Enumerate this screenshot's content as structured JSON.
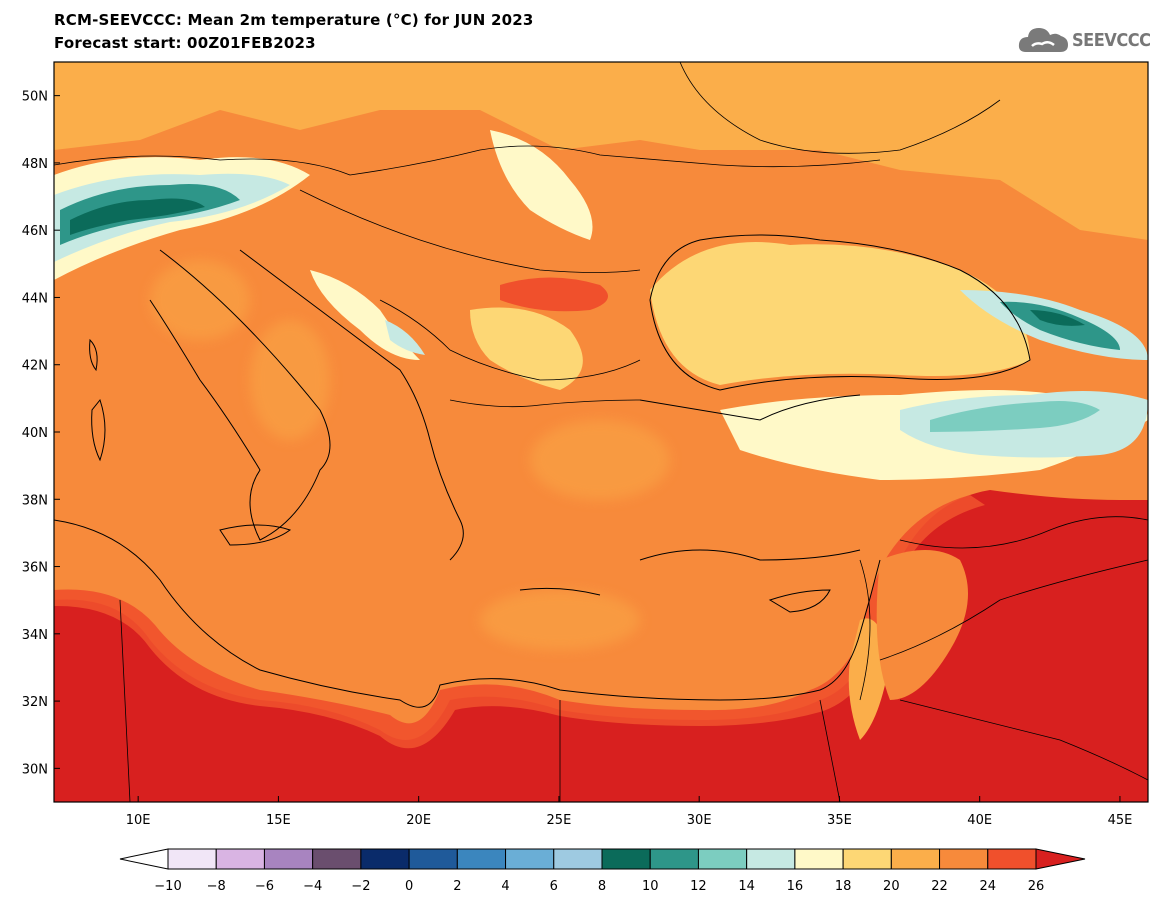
{
  "title_line1": "RCM-SEEVCCC: Mean 2m temperature (°C) for JUN 2023",
  "title_line2": "Forecast start: 00Z01FEB2023",
  "logo_text": "SEEVCCC",
  "map": {
    "lon_range": [
      7,
      46
    ],
    "lat_range": [
      29,
      51
    ],
    "lat_labels": [
      "50N",
      "48N",
      "46N",
      "44N",
      "42N",
      "40N",
      "38N",
      "36N",
      "34N",
      "32N",
      "30N"
    ],
    "lon_labels": [
      "10E",
      "15E",
      "20E",
      "25E",
      "30E",
      "35E",
      "40E",
      "45E"
    ]
  },
  "colorbar": {
    "labels": [
      "-10",
      "-8",
      "-6",
      "-4",
      "-2",
      "0",
      "2",
      "4",
      "6",
      "8",
      "10",
      "12",
      "14",
      "16",
      "18",
      "20",
      "22",
      "24",
      "26"
    ],
    "colors": [
      "#f1e6f7",
      "#d9b4e3",
      "#a884c0",
      "#6a4e6e",
      "#0a2b6a",
      "#1f5a9a",
      "#3b86be",
      "#6aaed6",
      "#9ecae1",
      "#0b6b5a",
      "#2e9689",
      "#7ccdc0",
      "#c6e9e3",
      "#fff9c8",
      "#fdd775",
      "#fbae4a",
      "#f78a3b",
      "#f0502c"
    ],
    "under_color": "#ffffff",
    "over_color": "#d8201f"
  }
}
